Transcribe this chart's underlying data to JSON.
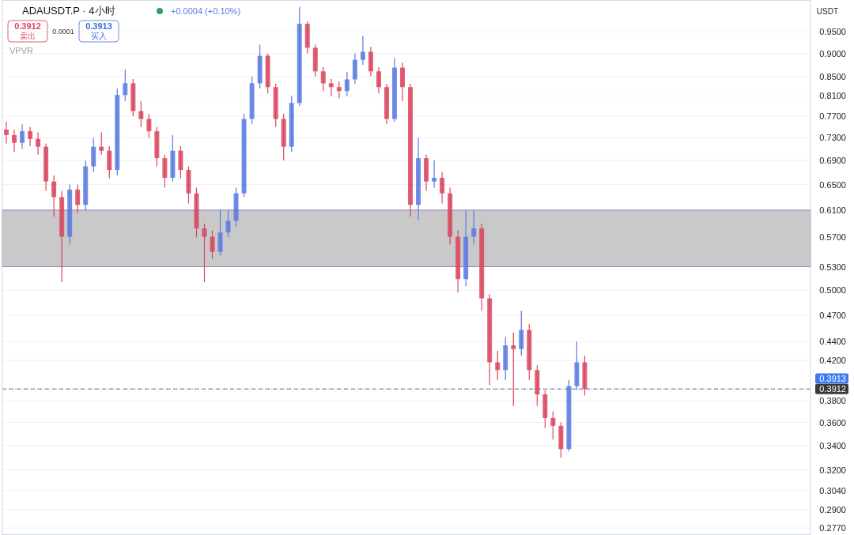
{
  "chart_data": {
    "type": "candlestick",
    "title": "ADAUSDT.P · 4小时",
    "categories": [
      null,
      null,
      null,
      null,
      null,
      null,
      null,
      null,
      null,
      null,
      null,
      null,
      null,
      null,
      null,
      null,
      null,
      null,
      null,
      null,
      null,
      null,
      null,
      null,
      null,
      null,
      null,
      null,
      null,
      null,
      null,
      null,
      null,
      null,
      null,
      null,
      null,
      null,
      null,
      null,
      null,
      null,
      null,
      null,
      null,
      null,
      null,
      null,
      null,
      null,
      null,
      null,
      null,
      null,
      null,
      null,
      null,
      null,
      null,
      null,
      null,
      null,
      null,
      null,
      null,
      null,
      null,
      null,
      null,
      null,
      null,
      null,
      null,
      null,
      null,
      null,
      null,
      null,
      null,
      null,
      null,
      null,
      null,
      null,
      null,
      null,
      null,
      null,
      null,
      null,
      null,
      null,
      null,
      null,
      null,
      null,
      null,
      null,
      null,
      null,
      null,
      null
    ],
    "ohlc": [
      [
        0.745,
        0.76,
        0.72,
        0.735
      ],
      [
        0.735,
        0.745,
        0.705,
        0.721
      ],
      [
        0.721,
        0.755,
        0.71,
        0.742
      ],
      [
        0.742,
        0.75,
        0.715,
        0.728
      ],
      [
        0.728,
        0.74,
        0.7,
        0.714
      ],
      [
        0.714,
        0.72,
        0.64,
        0.655
      ],
      [
        0.655,
        0.665,
        0.6,
        0.63
      ],
      [
        0.63,
        0.64,
        0.51,
        0.571
      ],
      [
        0.571,
        0.65,
        0.56,
        0.642
      ],
      [
        0.642,
        0.65,
        0.605,
        0.618
      ],
      [
        0.618,
        0.69,
        0.61,
        0.68
      ],
      [
        0.68,
        0.73,
        0.67,
        0.714
      ],
      [
        0.714,
        0.74,
        0.7,
        0.707
      ],
      [
        0.707,
        0.715,
        0.66,
        0.674
      ],
      [
        0.674,
        0.825,
        0.665,
        0.812
      ],
      [
        0.812,
        0.865,
        0.8,
        0.836
      ],
      [
        0.836,
        0.845,
        0.77,
        0.78
      ],
      [
        0.78,
        0.8,
        0.75,
        0.765
      ],
      [
        0.765,
        0.775,
        0.73,
        0.742
      ],
      [
        0.742,
        0.75,
        0.68,
        0.694
      ],
      [
        0.694,
        0.7,
        0.645,
        0.661
      ],
      [
        0.661,
        0.735,
        0.655,
        0.707
      ],
      [
        0.707,
        0.715,
        0.66,
        0.674
      ],
      [
        0.674,
        0.68,
        0.62,
        0.636
      ],
      [
        0.636,
        0.645,
        0.57,
        0.583
      ],
      [
        0.583,
        0.59,
        0.51,
        0.571
      ],
      [
        0.571,
        0.58,
        0.54,
        0.55
      ],
      [
        0.55,
        0.61,
        0.545,
        0.577
      ],
      [
        0.577,
        0.61,
        0.57,
        0.594
      ],
      [
        0.594,
        0.645,
        0.585,
        0.636
      ],
      [
        0.636,
        0.775,
        0.63,
        0.765
      ],
      [
        0.765,
        0.85,
        0.755,
        0.836
      ],
      [
        0.836,
        0.92,
        0.825,
        0.895
      ],
      [
        0.895,
        0.9,
        0.815,
        0.828
      ],
      [
        0.828,
        0.835,
        0.75,
        0.765
      ],
      [
        0.765,
        0.775,
        0.69,
        0.714
      ],
      [
        0.714,
        0.81,
        0.705,
        0.796
      ],
      [
        0.796,
        1.01,
        0.79,
        0.969
      ],
      [
        0.969,
        0.975,
        0.9,
        0.913
      ],
      [
        0.913,
        0.92,
        0.85,
        0.861
      ],
      [
        0.861,
        0.87,
        0.82,
        0.836
      ],
      [
        0.836,
        0.845,
        0.81,
        0.828
      ],
      [
        0.828,
        0.84,
        0.805,
        0.82
      ],
      [
        0.82,
        0.86,
        0.81,
        0.844
      ],
      [
        0.844,
        0.9,
        0.835,
        0.886
      ],
      [
        0.886,
        0.94,
        0.875,
        0.904
      ],
      [
        0.904,
        0.915,
        0.85,
        0.861
      ],
      [
        0.861,
        0.87,
        0.815,
        0.828
      ],
      [
        0.828,
        0.835,
        0.755,
        0.765
      ],
      [
        0.765,
        0.89,
        0.76,
        0.869
      ],
      [
        0.869,
        0.88,
        0.8,
        0.828
      ],
      [
        0.828,
        0.835,
        0.6,
        0.618
      ],
      [
        0.618,
        0.73,
        0.595,
        0.694
      ],
      [
        0.694,
        0.7,
        0.64,
        0.655
      ],
      [
        0.655,
        0.69,
        0.645,
        0.661
      ],
      [
        0.661,
        0.67,
        0.62,
        0.636
      ],
      [
        0.636,
        0.645,
        0.56,
        0.571
      ],
      [
        0.571,
        0.58,
        0.497,
        0.514
      ],
      [
        0.514,
        0.61,
        0.505,
        0.571
      ],
      [
        0.571,
        0.61,
        0.56,
        0.583
      ],
      [
        0.583,
        0.59,
        0.475,
        0.49
      ],
      [
        0.49,
        0.495,
        0.395,
        0.418
      ],
      [
        0.418,
        0.43,
        0.4,
        0.41
      ],
      [
        0.41,
        0.445,
        0.4,
        0.436
      ],
      [
        0.436,
        0.45,
        0.375,
        0.432
      ],
      [
        0.432,
        0.475,
        0.425,
        0.453
      ],
      [
        0.453,
        0.46,
        0.4,
        0.41
      ],
      [
        0.41,
        0.415,
        0.375,
        0.386
      ],
      [
        0.386,
        0.39,
        0.355,
        0.364
      ],
      [
        0.364,
        0.37,
        0.345,
        0.357
      ],
      [
        0.357,
        0.36,
        0.33,
        0.337
      ],
      [
        0.337,
        0.4,
        0.335,
        0.394
      ],
      [
        0.394,
        0.44,
        0.39,
        0.418
      ],
      [
        0.418,
        0.425,
        0.385,
        0.3912
      ],
      null,
      null,
      null,
      null,
      null,
      null,
      null,
      null,
      null,
      null,
      null,
      null,
      null,
      null,
      null,
      null,
      null,
      null,
      null,
      null,
      null,
      null,
      null,
      null,
      null,
      null,
      null,
      null
    ],
    "colors": [
      "#d9475f",
      "#d9475f",
      "#5b7be0",
      "#d9475f",
      "#d9475f",
      "#d9475f",
      "#d9475f",
      "#d9475f",
      "#5b7be0",
      "#d9475f",
      "#5b7be0",
      "#5b7be0",
      "#d9475f",
      "#d9475f",
      "#5b7be0",
      "#5b7be0",
      "#d9475f",
      "#d9475f",
      "#d9475f",
      "#d9475f",
      "#d9475f",
      "#5b7be0",
      "#d9475f",
      "#d9475f",
      "#d9475f",
      "#d9475f",
      "#d9475f",
      "#5b7be0",
      "#5b7be0",
      "#5b7be0",
      "#5b7be0",
      "#5b7be0",
      "#5b7be0",
      "#d9475f",
      "#d9475f",
      "#d9475f",
      "#5b7be0",
      "#5b7be0",
      "#d9475f",
      "#d9475f",
      "#d9475f",
      "#d9475f",
      "#d9475f",
      "#5b7be0",
      "#5b7be0",
      "#5b7be0",
      "#d9475f",
      "#d9475f",
      "#d9475f",
      "#5b7be0",
      "#d9475f",
      "#d9475f",
      "#5b7be0",
      "#d9475f",
      "#5b7be0",
      "#d9475f",
      "#d9475f",
      "#d9475f",
      "#5b7be0",
      "#5b7be0",
      "#d9475f",
      "#d9475f",
      "#d9475f",
      "#5b7be0",
      "#d9475f",
      "#5b7be0",
      "#d9475f",
      "#d9475f",
      "#d9475f",
      "#d9475f",
      "#d9475f",
      "#5b7be0",
      "#5b7be0",
      "#d9475f",
      null,
      null,
      null,
      null,
      null,
      null,
      null,
      null,
      null,
      null,
      null,
      null,
      null,
      null,
      null,
      null,
      null,
      null,
      null,
      null,
      null,
      null,
      null,
      null,
      null,
      null,
      null,
      null
    ],
    "log": true,
    "ylim": [
      0.2722,
      1.028
    ],
    "yticks": [
      {
        "value": 0.277,
        "label": "0.2770"
      },
      {
        "value": 0.29,
        "label": "0.2900"
      },
      {
        "value": 0.304,
        "label": "0.3040"
      },
      {
        "value": 0.32,
        "label": "0.3200"
      },
      {
        "value": 0.34,
        "label": "0.3400"
      },
      {
        "value": 0.36,
        "label": "0.3600"
      },
      {
        "value": 0.38,
        "label": "0.3800"
      },
      {
        "value": 0.42,
        "label": "0.4200"
      },
      {
        "value": 0.44,
        "label": "0.4400"
      },
      {
        "value": 0.47,
        "label": "0.4700"
      },
      {
        "value": 0.5,
        "label": "0.5000"
      },
      {
        "value": 0.53,
        "label": "0.5300"
      },
      {
        "value": 0.57,
        "label": "0.5700"
      },
      {
        "value": 0.61,
        "label": "0.6100"
      },
      {
        "value": 0.65,
        "label": "0.6500"
      },
      {
        "value": 0.69,
        "label": "0.6900"
      },
      {
        "value": 0.73,
        "label": "0.7300"
      },
      {
        "value": 0.77,
        "label": "0.7700"
      },
      {
        "value": 0.81,
        "label": "0.8100"
      },
      {
        "value": 0.85,
        "label": "0.8500"
      },
      {
        "value": 0.9,
        "label": "0.9000"
      },
      {
        "value": 0.95,
        "label": "0.9500"
      }
    ],
    "tick_labels": "y",
    "grid": "y",
    "ref_lines": [
      {
        "axis": "y",
        "value": 0.3913,
        "label": "0.3913",
        "color": "#3d7cf0",
        "line_style": "dotted"
      },
      {
        "axis": "y",
        "value": 0.3912,
        "label": "0.3912",
        "color": "#3a3a3a",
        "line_style": "dashed"
      }
    ],
    "bands": [
      {
        "axis": "y",
        "from": 0.53,
        "to": 0.61,
        "color": "#c9c9c9"
      }
    ],
    "annotations": [
      "+0.0004 (+0.10%)",
      "0.3912",
      "卖出",
      "0.0001",
      "0.3913",
      "买入",
      "VPVR",
      "USDT"
    ]
  }
}
